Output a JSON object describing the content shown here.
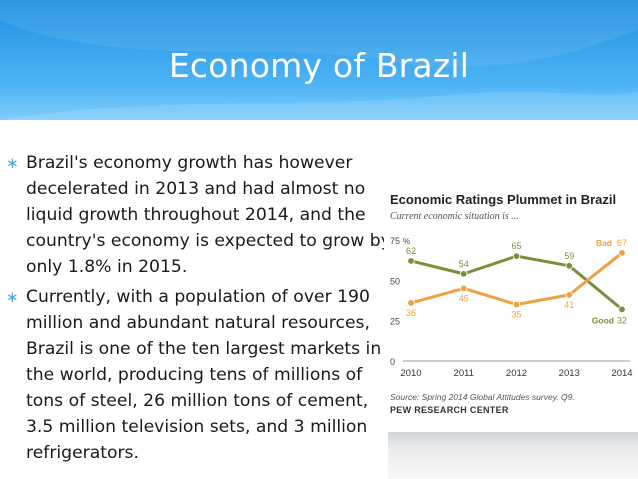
{
  "slide": {
    "title": "Economy of Brazil",
    "bullets": [
      "Brazil's economy growth has however decelerated in 2013 and had almost no liquid growth throughout 2014, and the country's economy is expected to grow by only 1.8% in 2015.",
      "Currently, with a population of over 190 million and abundant natural resources, Brazil is one of the ten largest markets in the world, producing tens of millions of tons of steel, 26 million tons of cement, 3.5 million television sets, and 3 million refrigerators."
    ],
    "bullet_marker": "∗"
  },
  "colors": {
    "header_top": "#1f8fe0",
    "good_series": "#7f8c3a",
    "bad_series": "#f0a040",
    "bullet_marker": "#4aa6e0"
  },
  "chart_data": {
    "type": "line",
    "title": "Economic Ratings Plummet in Brazil",
    "subtitle": "Current economic situation is ...",
    "x": [
      "2010",
      "2011",
      "2012",
      "2013",
      "2014"
    ],
    "series": [
      {
        "name": "Good",
        "values": [
          62,
          54,
          65,
          59,
          32
        ]
      },
      {
        "name": "Bad",
        "values": [
          36,
          45,
          35,
          41,
          67
        ]
      }
    ],
    "y_ticks": [
      "0",
      "25",
      "50",
      "75"
    ],
    "y_unit": "%",
    "ylim": [
      0,
      75
    ],
    "grid": false,
    "source": "Source: Spring 2014 Global Attitudes survey. Q9.",
    "org": "PEW RESEARCH CENTER"
  }
}
